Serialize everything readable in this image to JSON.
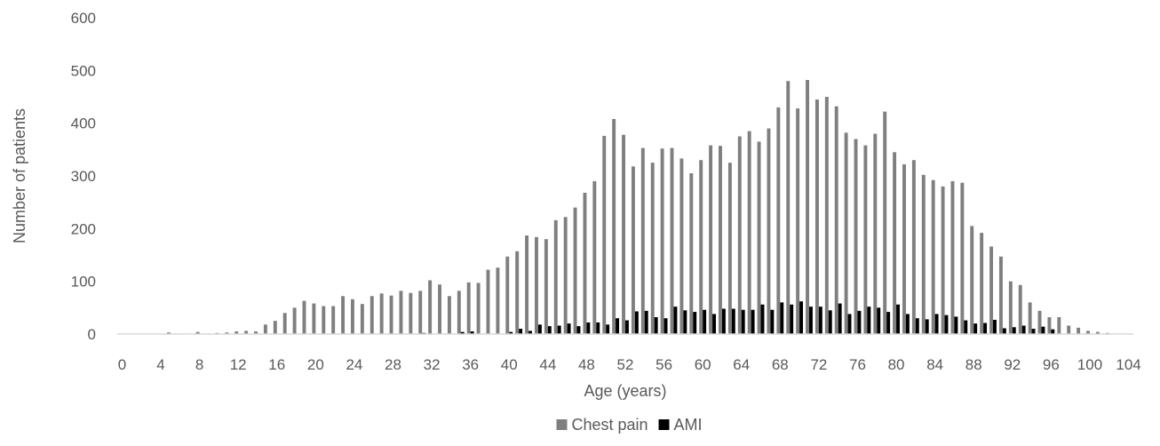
{
  "chart_data": {
    "type": "bar",
    "title": "",
    "xlabel": "Age (years)",
    "ylabel": "Number of patients",
    "ylim": [
      0,
      600
    ],
    "yticks": [
      0,
      100,
      200,
      300,
      400,
      500,
      600
    ],
    "xticks": [
      0,
      4,
      8,
      12,
      16,
      20,
      24,
      28,
      32,
      36,
      40,
      44,
      48,
      52,
      56,
      60,
      64,
      68,
      72,
      76,
      80,
      84,
      88,
      92,
      96,
      100,
      104
    ],
    "grid": false,
    "legend_position": "bottom-center",
    "x": [
      0,
      1,
      2,
      3,
      4,
      5,
      6,
      7,
      8,
      9,
      10,
      11,
      12,
      13,
      14,
      15,
      16,
      17,
      18,
      19,
      20,
      21,
      22,
      23,
      24,
      25,
      26,
      27,
      28,
      29,
      30,
      31,
      32,
      33,
      34,
      35,
      36,
      37,
      38,
      39,
      40,
      41,
      42,
      43,
      44,
      45,
      46,
      47,
      48,
      49,
      50,
      51,
      52,
      53,
      54,
      55,
      56,
      57,
      58,
      59,
      60,
      61,
      62,
      63,
      64,
      65,
      66,
      67,
      68,
      69,
      70,
      71,
      72,
      73,
      74,
      75,
      76,
      77,
      78,
      79,
      80,
      81,
      82,
      83,
      84,
      85,
      86,
      87,
      88,
      89,
      90,
      91,
      92,
      93,
      94,
      95,
      96,
      97,
      98,
      99,
      100,
      101,
      102,
      103
    ],
    "series": [
      {
        "name": "Chest pain",
        "color": "#7f7f7f",
        "values": [
          0,
          0,
          0,
          0,
          0,
          3,
          1,
          0,
          4,
          1,
          2,
          3,
          5,
          6,
          5,
          18,
          25,
          40,
          50,
          63,
          58,
          53,
          53,
          72,
          66,
          57,
          72,
          77,
          73,
          82,
          78,
          82,
          102,
          94,
          72,
          82,
          98,
          97,
          122,
          126,
          147,
          157,
          187,
          184,
          180,
          216,
          222,
          240,
          268,
          290,
          376,
          408,
          378,
          318,
          353,
          325,
          352,
          353,
          333,
          305,
          330,
          358,
          357,
          325,
          375,
          385,
          365,
          390,
          430,
          480,
          428,
          482,
          445,
          450,
          432,
          382,
          370,
          358,
          380,
          422,
          345,
          322,
          330,
          302,
          292,
          280,
          290,
          287,
          205,
          192,
          166,
          147,
          100,
          93,
          60,
          44,
          32,
          32,
          16,
          12,
          6,
          4,
          2,
          0
        ]
      },
      {
        "name": "AMI",
        "color": "#000000",
        "values": [
          0,
          0,
          0,
          0,
          0,
          0,
          0,
          0,
          0,
          0,
          0,
          0,
          0,
          0,
          0,
          0,
          0,
          0,
          0,
          0,
          0,
          0,
          0,
          0,
          0,
          0,
          0,
          0,
          0,
          0,
          0,
          2,
          0,
          0,
          0,
          4,
          5,
          0,
          0,
          0,
          4,
          10,
          6,
          18,
          15,
          16,
          20,
          15,
          22,
          22,
          18,
          30,
          26,
          43,
          44,
          32,
          30,
          52,
          45,
          42,
          46,
          38,
          48,
          48,
          46,
          46,
          56,
          46,
          60,
          56,
          62,
          52,
          52,
          45,
          58,
          38,
          44,
          52,
          50,
          42,
          56,
          38,
          30,
          28,
          38,
          36,
          33,
          26,
          20,
          21,
          27,
          11,
          13,
          16,
          10,
          14,
          9,
          0,
          0,
          0,
          0,
          0,
          0,
          0
        ]
      }
    ]
  }
}
